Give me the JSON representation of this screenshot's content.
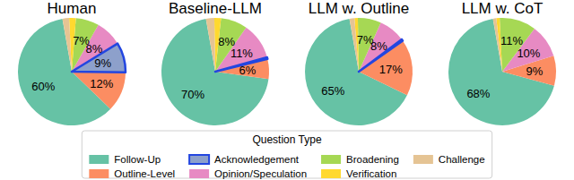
{
  "chart_data": {
    "type": "pie",
    "legend": "lower center",
    "legend_title": "Question Type",
    "categories": [
      "Follow-Up",
      "Outline-Level",
      "Acknowledgement",
      "Opinion/Speculation",
      "Broadening",
      "Verification",
      "Challenge"
    ],
    "colors": [
      "#66c2a5",
      "#fc8d62",
      "#8da0cb",
      "#e78ac3",
      "#a6d854",
      "#ffd92f",
      "#e5c494"
    ],
    "data_labels": true,
    "series": [
      {
        "name": "Human",
        "values": [
          60,
          12,
          9,
          8,
          7,
          2,
          2
        ],
        "value_labels": [
          "60%",
          "12%",
          "9%",
          "8%",
          "7%",
          null,
          null
        ]
      },
      {
        "name": "Baseline-LLM",
        "values": [
          70,
          6,
          0.5,
          11,
          8,
          2,
          2.5
        ],
        "value_labels": [
          "70%",
          "6%",
          null,
          "11%",
          "8%",
          null,
          null
        ]
      },
      {
        "name": "LLM w. Outline",
        "values": [
          65,
          17,
          0.5,
          8,
          7,
          1,
          1.5
        ],
        "value_labels": [
          "65%",
          "17%",
          null,
          "8%",
          "7%",
          null,
          null
        ]
      },
      {
        "name": "LLM w. CoT",
        "values": [
          68,
          9,
          0,
          10,
          11,
          1,
          1
        ],
        "value_labels": [
          "68%",
          "9%",
          null,
          "10%",
          "11%",
          null,
          null
        ]
      }
    ]
  }
}
